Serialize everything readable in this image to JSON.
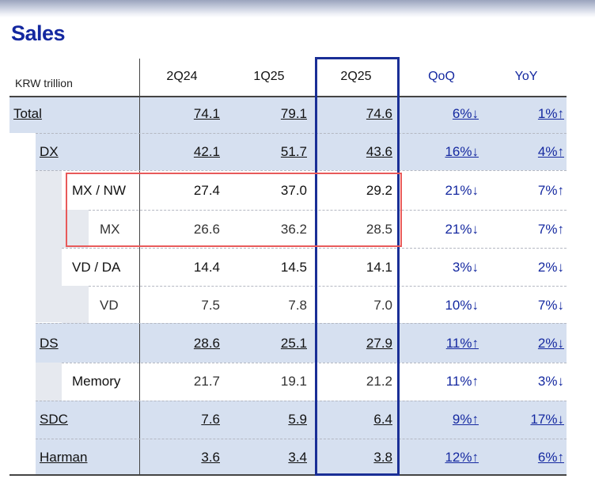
{
  "title": "Sales",
  "unit_label": "KRW trillion",
  "columns": [
    "2Q24",
    "1Q25",
    "2Q25",
    "QoQ",
    "YoY"
  ],
  "rows": [
    {
      "label": "Total",
      "v2q24": "74.1",
      "v1q25": "79.1",
      "v2q25": "74.6",
      "qoq": "6%↓",
      "yoy": "1%↑"
    },
    {
      "label": "DX",
      "v2q24": "42.1",
      "v1q25": "51.7",
      "v2q25": "43.6",
      "qoq": "16%↓",
      "yoy": "4%↑"
    },
    {
      "label": "MX / NW",
      "v2q24": "27.4",
      "v1q25": "37.0",
      "v2q25": "29.2",
      "qoq": "21%↓",
      "yoy": "7%↑"
    },
    {
      "label": "MX",
      "v2q24": "26.6",
      "v1q25": "36.2",
      "v2q25": "28.5",
      "qoq": "21%↓",
      "yoy": "7%↑"
    },
    {
      "label": "VD / DA",
      "v2q24": "14.4",
      "v1q25": "14.5",
      "v2q25": "14.1",
      "qoq": "3%↓",
      "yoy": "2%↓"
    },
    {
      "label": "VD",
      "v2q24": "7.5",
      "v1q25": "7.8",
      "v2q25": "7.0",
      "qoq": "10%↓",
      "yoy": "7%↓"
    },
    {
      "label": "DS",
      "v2q24": "28.6",
      "v1q25": "25.1",
      "v2q25": "27.9",
      "qoq": "11%↑",
      "yoy": "2%↓"
    },
    {
      "label": "Memory",
      "v2q24": "21.7",
      "v1q25": "19.1",
      "v2q25": "21.2",
      "qoq": "11%↑",
      "yoy": "3%↓"
    },
    {
      "label": "SDC",
      "v2q24": "7.6",
      "v1q25": "5.9",
      "v2q25": "6.4",
      "qoq": "9%↑",
      "yoy": "17%↓"
    },
    {
      "label": "Harman",
      "v2q24": "3.6",
      "v1q25": "3.4",
      "v2q25": "3.8",
      "qoq": "12%↑",
      "yoy": "6%↑"
    }
  ],
  "colors": {
    "brand_blue": "#1428a0",
    "highlight_red": "#e85a5a",
    "row_blue": "#d6e0f0",
    "indent_grey": "#e6e9ef"
  }
}
